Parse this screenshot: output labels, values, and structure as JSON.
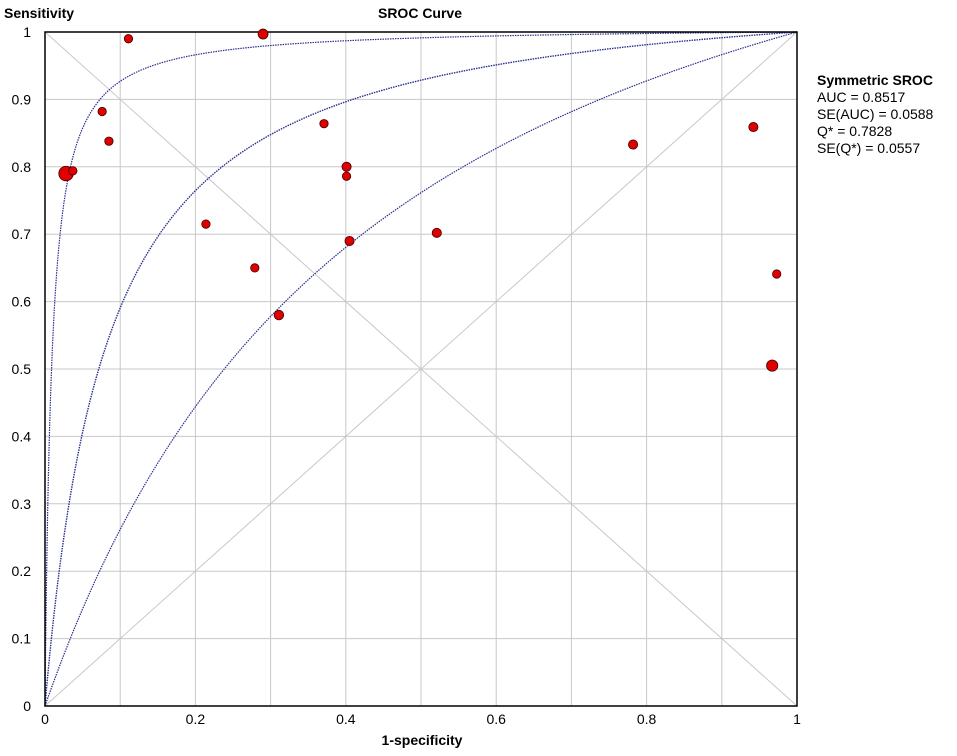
{
  "chart_data": {
    "type": "scatter",
    "title": "SROC Curve",
    "xlabel": "1-specificity",
    "ylabel": "Sensitivity",
    "xlim": [
      0,
      1
    ],
    "ylim": [
      0,
      1
    ],
    "grid": true,
    "x_ticks": [
      0,
      0.1,
      0.2,
      0.3,
      0.4,
      0.5,
      0.6,
      0.7,
      0.8,
      0.9,
      1
    ],
    "x_tick_labels": [
      "0",
      "",
      "0.2",
      "",
      "0.4",
      "",
      "0.6",
      "",
      "0.8",
      "",
      "1"
    ],
    "y_ticks": [
      0,
      0.1,
      0.2,
      0.3,
      0.4,
      0.5,
      0.6,
      0.7,
      0.8,
      0.9,
      1
    ],
    "y_tick_labels": [
      "0",
      "0.1",
      "0.2",
      "0.3",
      "0.4",
      "0.5",
      "0.6",
      "0.7",
      "0.8",
      "0.9",
      "1"
    ],
    "points": [
      {
        "x": 0.028,
        "y": 0.79,
        "weight": 3
      },
      {
        "x": 0.037,
        "y": 0.794,
        "weight": 1
      },
      {
        "x": 0.076,
        "y": 0.882,
        "weight": 1
      },
      {
        "x": 0.085,
        "y": 0.838,
        "weight": 1
      },
      {
        "x": 0.111,
        "y": 0.99,
        "weight": 1
      },
      {
        "x": 0.214,
        "y": 0.715,
        "weight": 1
      },
      {
        "x": 0.279,
        "y": 0.65,
        "weight": 1
      },
      {
        "x": 0.29,
        "y": 0.997,
        "weight": 1.4
      },
      {
        "x": 0.311,
        "y": 0.58,
        "weight": 1.3
      },
      {
        "x": 0.371,
        "y": 0.864,
        "weight": 1
      },
      {
        "x": 0.401,
        "y": 0.8,
        "weight": 1.2
      },
      {
        "x": 0.401,
        "y": 0.786,
        "weight": 1
      },
      {
        "x": 0.405,
        "y": 0.69,
        "weight": 1.2
      },
      {
        "x": 0.521,
        "y": 0.702,
        "weight": 1.2
      },
      {
        "x": 0.782,
        "y": 0.833,
        "weight": 1.2
      },
      {
        "x": 0.942,
        "y": 0.859,
        "weight": 1.2
      },
      {
        "x": 0.967,
        "y": 0.505,
        "weight": 1.8
      },
      {
        "x": 0.973,
        "y": 0.641,
        "weight": 1
      }
    ],
    "sroc_curve": {
      "auc": 0.8517
    },
    "ci_curves": [
      {
        "auc": 0.9666
      },
      {
        "auc": 0.6853
      }
    ],
    "reference_lines": [
      "diagonal",
      "anti-diagonal"
    ],
    "colors": {
      "points": "#e00000",
      "curve": "#2a2f8f",
      "grid": "#c8c8c8"
    }
  },
  "stats": {
    "heading": "Symmetric SROC",
    "lines": [
      "AUC = 0.8517",
      "SE(AUC) = 0.0588",
      "Q* = 0.7828",
      "SE(Q*) = 0.0557"
    ]
  }
}
